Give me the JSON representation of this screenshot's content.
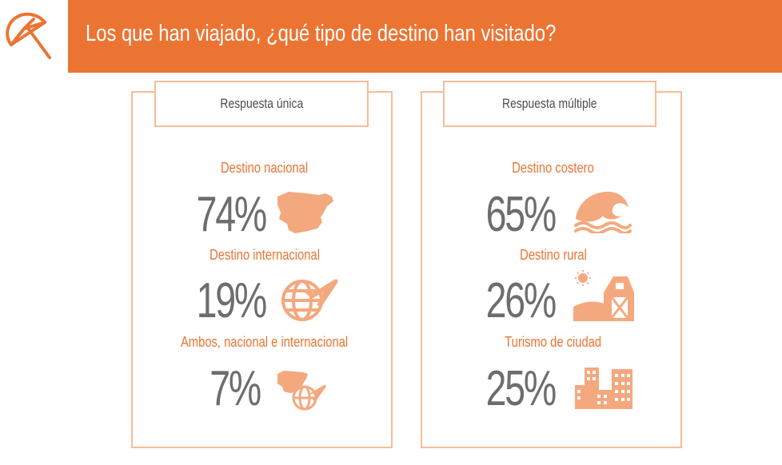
{
  "header": {
    "title": "Los que han viajado, ¿qué tipo de destino han visitado?"
  },
  "colors": {
    "accent": "#ec7433",
    "icon_fill": "#f4a87e",
    "border": "#f6bd98",
    "number": "#6d6d6d"
  },
  "left_panel": {
    "tab_label": "Respuesta única",
    "items": [
      {
        "label": "Destino nacional",
        "value": "74%",
        "icon": "spain-map-icon"
      },
      {
        "label": "Destino internacional",
        "value": "19%",
        "icon": "globe-airplane-icon"
      },
      {
        "label": "Ambos, nacional e internacional",
        "value": "7%",
        "icon": "spain-globe-icon"
      }
    ]
  },
  "right_panel": {
    "tab_label": "Respuesta múltiple",
    "items": [
      {
        "label": "Destino costero",
        "value": "65%",
        "icon": "wave-icon"
      },
      {
        "label": "Destino rural",
        "value": "26%",
        "icon": "barn-icon"
      },
      {
        "label": "Turismo de ciudad",
        "value": "25%",
        "icon": "city-buildings-icon"
      }
    ]
  }
}
